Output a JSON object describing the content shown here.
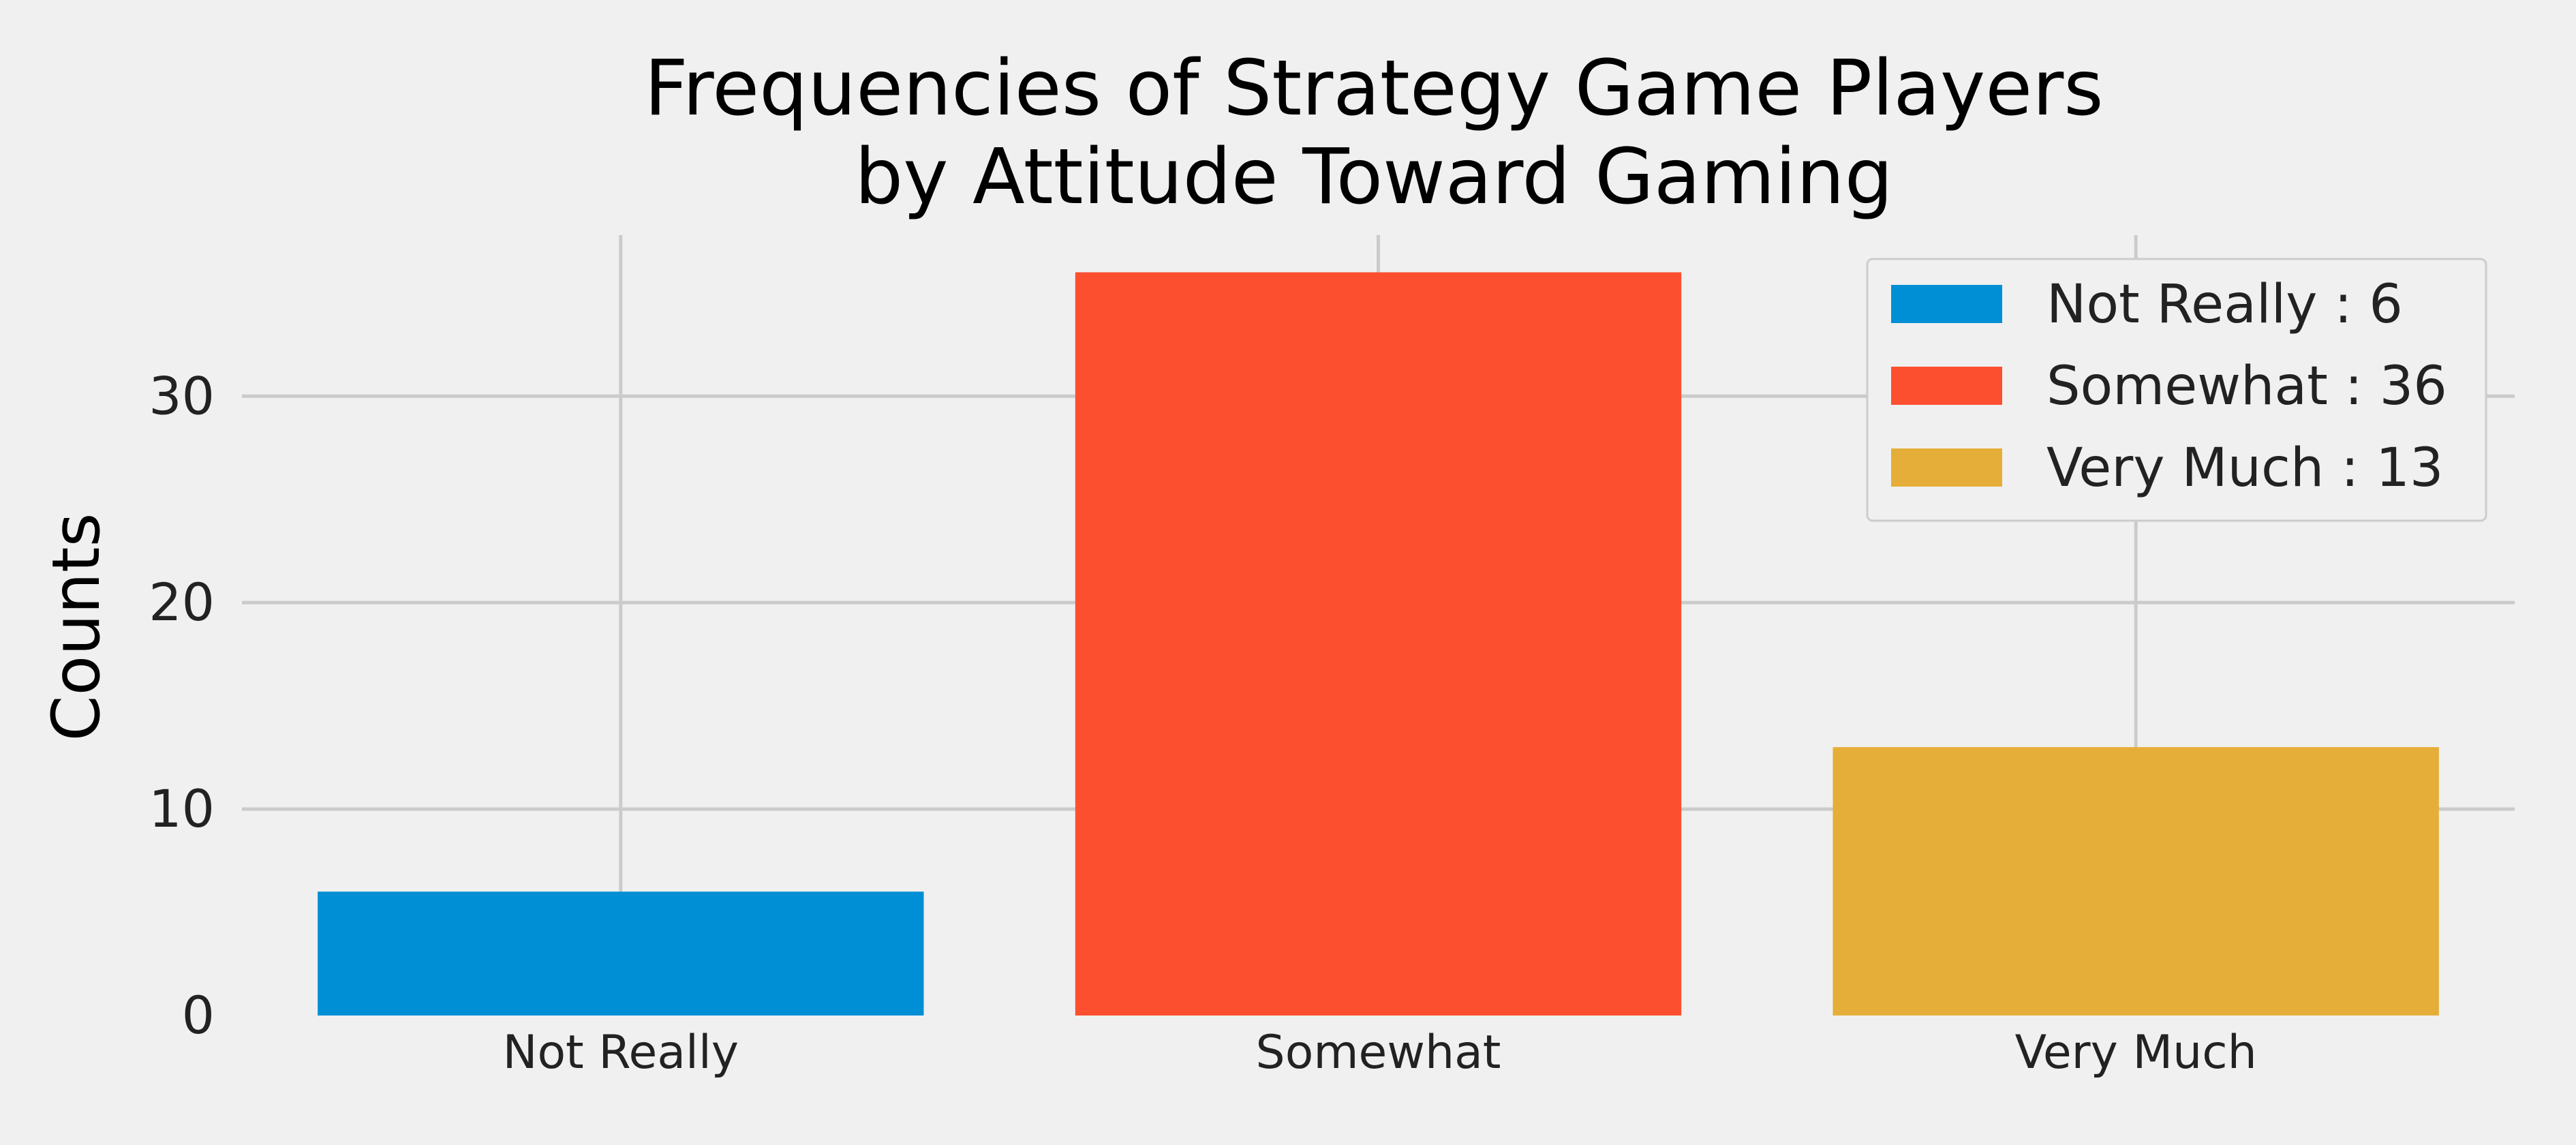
{
  "chart_data": {
    "type": "bar",
    "title_lines": [
      "Frequencies of Strategy Game Players",
      "by Attitude Toward Gaming"
    ],
    "xlabel": "",
    "ylabel": "Counts",
    "categories": [
      "Not Really",
      "Somewhat",
      "Very Much"
    ],
    "values": [
      6,
      36,
      13
    ],
    "colors": [
      "#008fd5",
      "#fc4f30",
      "#e5ae38"
    ],
    "ylim": [
      0,
      37.8
    ],
    "yticks": [
      0,
      10,
      20,
      30
    ],
    "ytick_labels": [
      "0",
      "10",
      "20",
      "30"
    ],
    "grid": true,
    "legend": {
      "position": "top-right",
      "entries": [
        "Not Really : 6",
        "Somewhat : 36",
        "Very Much : 13"
      ]
    }
  },
  "theme": {
    "background": "#f0f0f0",
    "grid_color": "#cbcbcb",
    "legend_border": "#cccccc"
  }
}
